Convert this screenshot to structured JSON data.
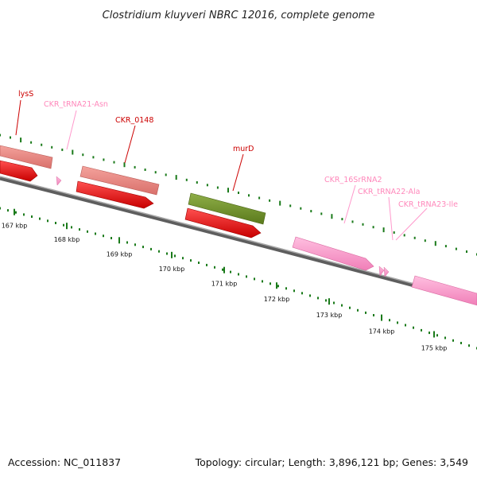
{
  "title": "Clostridium kluyveri NBRC 12016, complete genome",
  "accession": "Accession: NC_011837",
  "topology": "Topology: circular; Length: 3,896,121 bp; Genes: 3,549",
  "colors": {
    "backbone": "#8a8a8a",
    "cds_red": "#ff0000",
    "cds_salmon": "#e8837f",
    "cds_olive": "#6b8e23",
    "rna_pink": "#ff99cc",
    "tick_green": "#1a7a1a",
    "label_red": "#cc0000",
    "label_pink": "#ff88bb"
  },
  "ticks": [
    "167 kbp",
    "168 kbp",
    "169 kbp",
    "170 kbp",
    "171 kbp",
    "172 kbp",
    "173 kbp",
    "174 kbp",
    "175 kbp"
  ],
  "genes": [
    {
      "label": "lysS",
      "kind": "cds",
      "color": "label_red"
    },
    {
      "label": "CKR_tRNA21-Asn",
      "kind": "trna",
      "color": "label_pink"
    },
    {
      "label": "CKR_0148",
      "kind": "cds",
      "color": "label_red"
    },
    {
      "label": "murD",
      "kind": "cds",
      "color": "label_red"
    },
    {
      "label": "CKR_16SrRNA2",
      "kind": "rrna",
      "color": "label_pink"
    },
    {
      "label": "CKR_tRNA22-Ala",
      "kind": "trna",
      "color": "label_pink"
    },
    {
      "label": "CKR_tRNA23-Ile",
      "kind": "trna",
      "color": "label_pink"
    }
  ]
}
